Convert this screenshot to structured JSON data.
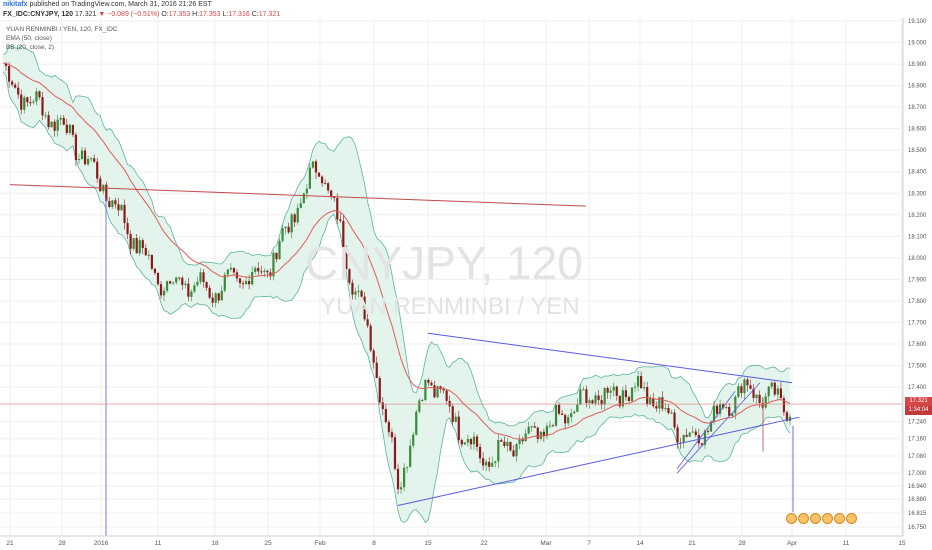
{
  "header": {
    "author": "nikitafx",
    "published": "published on TradingView.com, March 31, 2016 21:26 EST",
    "symbol": "FX_IDC:CNYJPY, 120",
    "last": "17.321",
    "change": "▼ −0.089 (−0.51%)",
    "o_label": "O:",
    "o_value": "17.353",
    "h_label": "H:",
    "h_value": "17.353",
    "l_label": "L:",
    "l_value": "17.316",
    "c_label": "C:",
    "c_value": "17.321"
  },
  "indicators": {
    "title": "YUAN RENMINBI / YEN, 120, FX_IDC",
    "ema": "EMA (50, close)",
    "bb": "BB (20, close, 2)"
  },
  "watermark": {
    "symbol": "CNYJPY, 120",
    "name": "YUAN RENMINBI / YEN"
  },
  "price_axis": {
    "badge_last": "17.321",
    "badge_timer": "1:34:04"
  },
  "colors": {
    "up": "#3b8a3b",
    "down": "#8b1a1a",
    "ema": "#e35b5b",
    "bb_line": "#5fb39c",
    "bb_fill": "#dff3ea",
    "trendline_blue": "#5a5ae0",
    "trendline_red": "#c44a4a",
    "last_price_line": "#e08080",
    "badge_red": "#d64545"
  },
  "chart_data": {
    "type": "candlestick",
    "title": "YUAN RENMINBI / YEN, 120, FX_IDC",
    "x_tick_labels": [
      "21",
      "28",
      "2016",
      "11",
      "18",
      "25",
      "Feb",
      "8",
      "15",
      "22",
      "Mar",
      "7",
      "14",
      "21",
      "28",
      "Apr",
      "11",
      "15"
    ],
    "y_tick_labels": [
      "19.100",
      "19.000",
      "18.900",
      "18.800",
      "18.700",
      "18.600",
      "18.500",
      "18.400",
      "18.300",
      "18.200",
      "18.100",
      "18.000",
      "17.900",
      "17.800",
      "17.700",
      "17.600",
      "17.500",
      "17.400",
      "17.321",
      "17.240",
      "17.160",
      "17.080",
      "17.000",
      "16.940",
      "16.880",
      "16.815",
      "16.750"
    ],
    "last_price": 17.321,
    "approx_close_path": [
      [
        "Dec 21",
        18.8
      ],
      [
        "Dec 28",
        18.62
      ],
      [
        "Jan 4",
        18.35
      ],
      [
        "Jan 11",
        17.9
      ],
      [
        "Jan 18",
        17.85
      ],
      [
        "Jan 25",
        17.95
      ],
      [
        "Feb 1",
        18.45
      ],
      [
        "Feb 8",
        17.55
      ],
      [
        "Feb 11",
        16.95
      ],
      [
        "Feb 15",
        17.45
      ],
      [
        "Feb 22",
        17.05
      ],
      [
        "Mar 1",
        17.2
      ],
      [
        "Mar 7",
        17.35
      ],
      [
        "Mar 14",
        17.4
      ],
      [
        "Mar 21",
        17.15
      ],
      [
        "Mar 28",
        17.4
      ],
      [
        "Mar 31",
        17.32
      ]
    ],
    "trendlines": [
      {
        "color": "red",
        "from": [
          "Dec 21",
          18.34
        ],
        "to": [
          "Mar 6",
          18.24
        ]
      },
      {
        "color": "blue",
        "from": [
          "Feb 15",
          17.65
        ],
        "to": [
          "Apr 1",
          17.42
        ]
      },
      {
        "color": "blue",
        "from": [
          "Feb 11",
          16.85
        ],
        "to": [
          "Apr 2",
          17.26
        ]
      }
    ]
  }
}
